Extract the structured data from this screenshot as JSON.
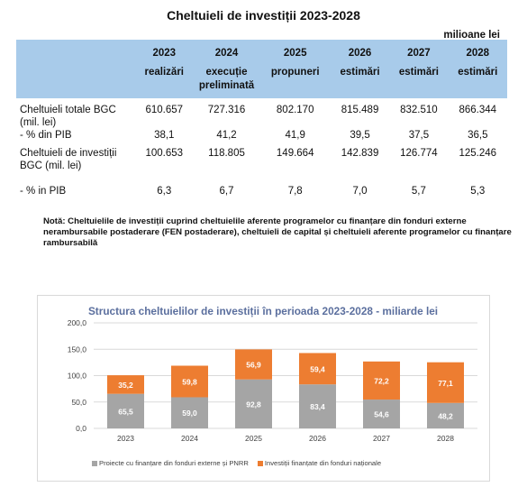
{
  "title": "Cheltuieli de investiții 2023-2028",
  "unit": "milioane lei",
  "table": {
    "years": [
      {
        "year": "2023",
        "sub": "realizări"
      },
      {
        "year": "2024",
        "sub": "execuție preliminată"
      },
      {
        "year": "2025",
        "sub": "propuneri"
      },
      {
        "year": "2026",
        "sub": "estimări"
      },
      {
        "year": "2027",
        "sub": "estimări"
      },
      {
        "year": "2028",
        "sub": "estimări"
      }
    ],
    "rows": [
      {
        "label": "Cheltuieli totale BGC (mil. lei)",
        "values": [
          "610.657",
          "727.316",
          "802.170",
          "815.489",
          "832.510",
          "866.344"
        ]
      },
      {
        "label": "- % din PIB",
        "values": [
          "38,1",
          "41,2",
          "41,9",
          "39,5",
          "37,5",
          "36,5"
        ]
      },
      {
        "label": "Cheltuieli de investiții BGC (mil. lei)",
        "values": [
          "100.653",
          "118.805",
          "149.664",
          "142.839",
          "126.774",
          "125.246"
        ]
      },
      {
        "label": "- % in PIB",
        "values": [
          "6,3",
          "6,7",
          "7,8",
          "7,0",
          "5,7",
          "5,3"
        ]
      }
    ]
  },
  "note": "Notă: Cheltuielile de investiții cuprind cheltuielile aferente programelor cu finanțare din fonduri externe nerambursabile postaderare (FEN postaderare), cheltuieli de capital și cheltuieli aferente programelor cu finanțare rambursabilă",
  "chart_data": {
    "type": "bar",
    "stacked": true,
    "title": "Structura cheltuielilor de investiții în perioada 2023-2028 - miliarde lei",
    "categories": [
      "2023",
      "2024",
      "2025",
      "2026",
      "2027",
      "2028"
    ],
    "series": [
      {
        "name": "Proiecte cu finanțare din fonduri externe și PNRR",
        "values": [
          65.5,
          59.0,
          92.8,
          83.4,
          54.6,
          48.2
        ],
        "labels": [
          "65,5",
          "59,0",
          "92,8",
          "83,4",
          "54,6",
          "48,2"
        ],
        "color": "#a5a5a5"
      },
      {
        "name": "Investiții finanțate din fonduri naționale",
        "values": [
          35.2,
          59.8,
          56.9,
          59.4,
          72.2,
          77.1
        ],
        "labels": [
          "35,2",
          "59,8",
          "56,9",
          "59,4",
          "72,2",
          "77,1"
        ],
        "color": "#ed7d31"
      }
    ],
    "ylim": [
      0,
      200
    ],
    "yticks": [
      "0,0",
      "50,0",
      "100,0",
      "150,0",
      "200,0"
    ],
    "grid": true,
    "legend": "bottom"
  }
}
